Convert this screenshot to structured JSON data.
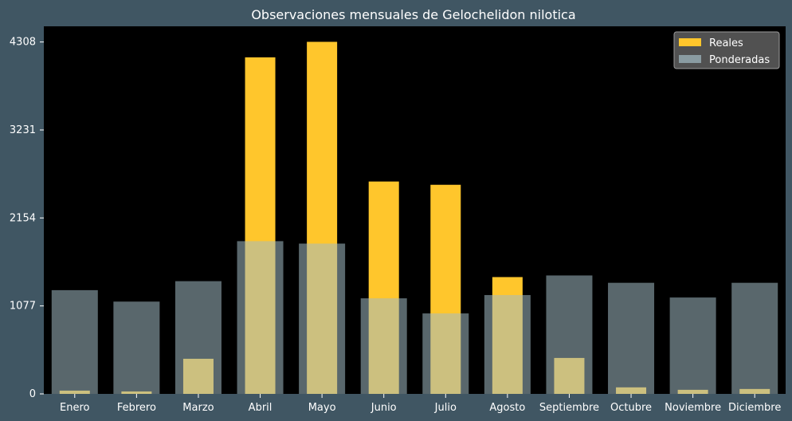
{
  "chart_data": {
    "type": "bar",
    "title": "Observaciones mensuales de Gelochelidon nilotica",
    "xlabel": "",
    "ylabel": "",
    "categories": [
      "Enero",
      "Febrero",
      "Marzo",
      "Abril",
      "Mayo",
      "Junio",
      "Julio",
      "Agosto",
      "Septiembre",
      "Octubre",
      "Noviembre",
      "Diciembre"
    ],
    "series": [
      {
        "name": "Reales",
        "values": [
          40,
          30,
          430,
          4120,
          4310,
          2600,
          2560,
          1430,
          440,
          80,
          50,
          60
        ]
      },
      {
        "name": "Ponderadas",
        "values": [
          1270,
          1130,
          1380,
          1870,
          1840,
          1170,
          985,
          1210,
          1450,
          1360,
          1180,
          1360
        ]
      }
    ],
    "yticks": [
      0,
      1077,
      2154,
      3231,
      4308
    ],
    "ylim": [
      0,
      4500
    ],
    "grid": false,
    "legend_position": "top-right",
    "colors": {
      "background": "#405663",
      "plot_background": "#000000",
      "reales": "#ffc62c",
      "ponderadas": "#a3bcc5",
      "text": "#ffffff",
      "legend_bg": "#5a5a5a"
    }
  }
}
